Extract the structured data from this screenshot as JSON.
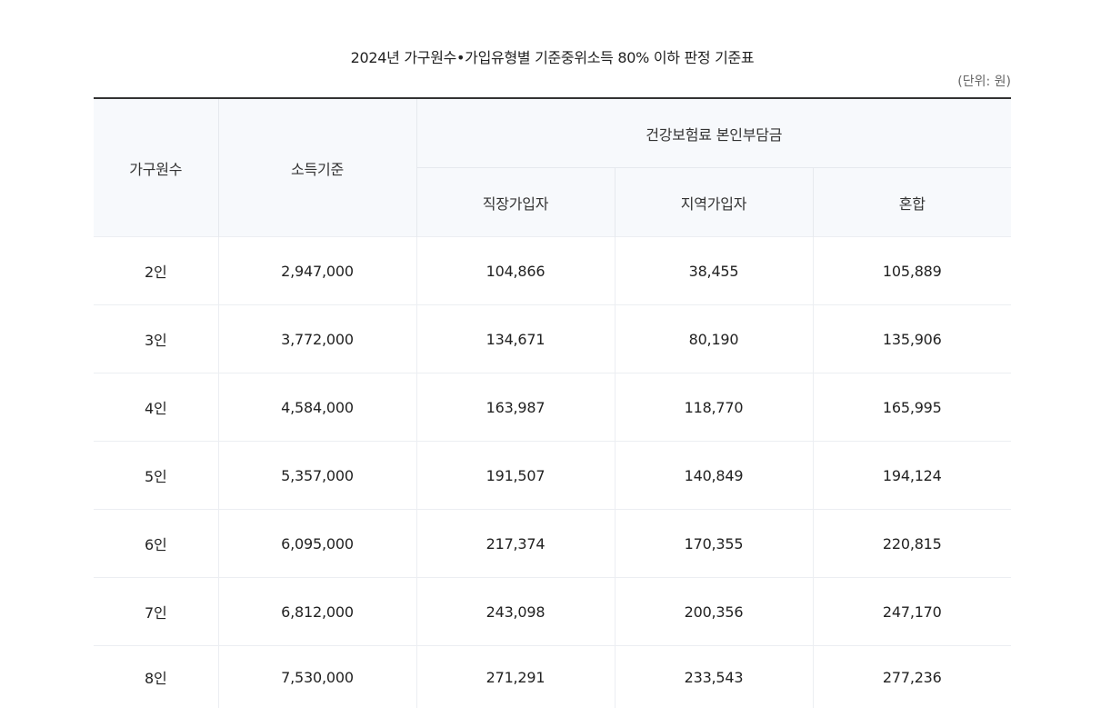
{
  "title": "2024년 가구원수•가입유형별 기준중위소득 80% 이하 판정 기준표",
  "unit": "(단위: 원)",
  "table": {
    "headers": {
      "household": "가구원수",
      "income": "소득기준",
      "premium_group": "건강보험료 본인부담금",
      "employee": "직장가입자",
      "regional": "지역가입자",
      "mixed": "혼합"
    },
    "rows": [
      [
        "2인",
        "2,947,000",
        "104,866",
        "38,455",
        "105,889"
      ],
      [
        "3인",
        "3,772,000",
        "134,671",
        "80,190",
        "135,906"
      ],
      [
        "4인",
        "4,584,000",
        "163,987",
        "118,770",
        "165,995"
      ],
      [
        "5인",
        "5,357,000",
        "191,507",
        "140,849",
        "194,124"
      ],
      [
        "6인",
        "6,095,000",
        "217,374",
        "170,355",
        "220,815"
      ],
      [
        "7인",
        "6,812,000",
        "243,098",
        "200,356",
        "247,170"
      ],
      [
        "8인",
        "7,530,000",
        "271,291",
        "233,543",
        "277,236"
      ]
    ]
  }
}
